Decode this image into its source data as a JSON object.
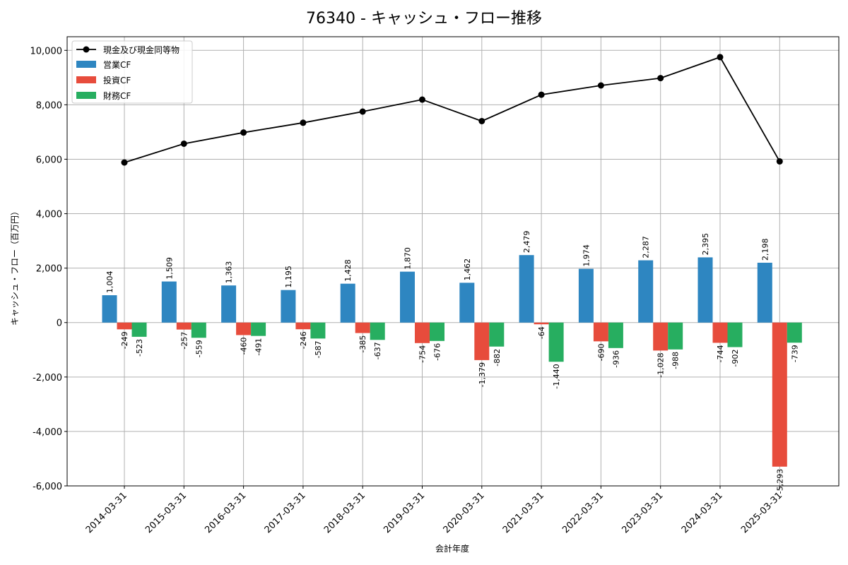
{
  "chart_data": {
    "type": "bar",
    "title": "76340 - キャッシュ・フロー推移",
    "xlabel": "会計年度",
    "ylabel": "キャッシュ・フロー（百万円）",
    "ylim": [
      -6000,
      10500
    ],
    "yticks": [
      -6000,
      -4000,
      -2000,
      0,
      2000,
      4000,
      6000,
      8000,
      10000
    ],
    "ytick_labels": [
      "-6,000",
      "-4,000",
      "-2,000",
      "0",
      "2,000",
      "4,000",
      "6,000",
      "8,000",
      "10,000"
    ],
    "grid": true,
    "legend_position": "top-left",
    "categories": [
      "2014-03-31",
      "2015-03-31",
      "2016-03-31",
      "2017-03-31",
      "2018-03-31",
      "2019-03-31",
      "2020-03-31",
      "2021-03-31",
      "2022-03-31",
      "2023-03-31",
      "2024-03-31",
      "2025-03-31"
    ],
    "line_series": {
      "name": "現金及び現金同等物",
      "color": "#000000",
      "values": [
        5880,
        6570,
        6980,
        7340,
        7750,
        8190,
        7400,
        8370,
        8710,
        8980,
        9750,
        5920
      ]
    },
    "series": [
      {
        "name": "営業CF",
        "color": "#2e86c1",
        "values": [
          1004,
          1509,
          1363,
          1195,
          1428,
          1870,
          1462,
          2479,
          1974,
          2287,
          2395,
          2198
        ],
        "labels": [
          "1,004",
          "1,509",
          "1,363",
          "1,195",
          "1,428",
          "1,870",
          "1,462",
          "2,479",
          "1,974",
          "2,287",
          "2,395",
          "2,198"
        ]
      },
      {
        "name": "投資CF",
        "color": "#e74c3c",
        "values": [
          -249,
          -257,
          -460,
          -246,
          -385,
          -754,
          -1379,
          -64,
          -690,
          -1028,
          -744,
          -5293
        ],
        "labels": [
          "-249",
          "-257",
          "-460",
          "-246",
          "-385",
          "-754",
          "-1,379",
          "-64",
          "-690",
          "-1,028",
          "-744",
          "-5,293"
        ]
      },
      {
        "name": "財務CF",
        "color": "#27ae60",
        "values": [
          -523,
          -559,
          -491,
          -587,
          -637,
          -676,
          -882,
          -1440,
          -936,
          -988,
          -902,
          -739
        ],
        "labels": [
          "-523",
          "-559",
          "-491",
          "-587",
          "-637",
          "-676",
          "-882",
          "-1,440",
          "-936",
          "-988",
          "-902",
          "-739"
        ]
      }
    ]
  }
}
